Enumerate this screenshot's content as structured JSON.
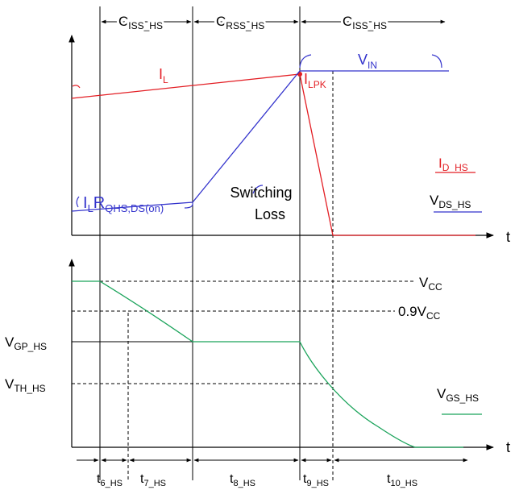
{
  "regions": {
    "r1": {
      "main": "C",
      "sub": "ISS_HS"
    },
    "r2": {
      "main": "C",
      "sub": "RSS_HS"
    },
    "r3": {
      "main": "C",
      "sub": "ISS_HS"
    }
  },
  "top_chart": {
    "il": {
      "main": "I",
      "sub": "L"
    },
    "vin": {
      "main": "V",
      "sub": "IN"
    },
    "ilpk": {
      "main": "I",
      "sub": "LPK"
    },
    "ilr": {
      "main": "I",
      "sub1": "L",
      "main2": "R",
      "sub2": "QHS,DS(on)"
    },
    "switching_line1": "Switching",
    "switching_line2": "Loss",
    "legend_id": {
      "main": "I",
      "sub": "D_HS"
    },
    "legend_vds": {
      "main": "V",
      "sub": "DS_HS"
    },
    "t_axis": "t"
  },
  "bottom_chart": {
    "vcc": {
      "main": "V",
      "sub": "CC"
    },
    "vcc09": {
      "main": "0.9V",
      "sub": "CC"
    },
    "vgp": {
      "main": "V",
      "sub": "GP_HS"
    },
    "vth": {
      "main": "V",
      "sub": "TH_HS"
    },
    "legend_vgs": {
      "main": "V",
      "sub": "GS_HS"
    },
    "t_axis": "t"
  },
  "time_labels": [
    {
      "main": "t",
      "sub": "6_HS"
    },
    {
      "main": "t",
      "sub": "7_HS"
    },
    {
      "main": "t",
      "sub": "8_HS"
    },
    {
      "main": "t",
      "sub": "9_HS"
    },
    {
      "main": "t",
      "sub": "10_HS"
    }
  ],
  "colors": {
    "current": "#e31e24",
    "voltage": "#3333cc",
    "gate": "#1aa35a",
    "axis": "#000000"
  }
}
